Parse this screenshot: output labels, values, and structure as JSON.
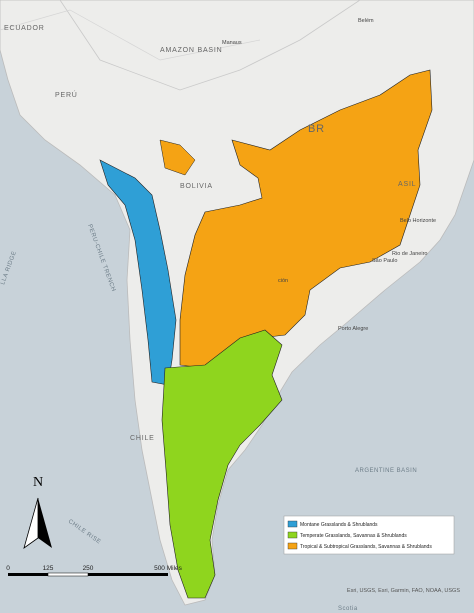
{
  "labels": {
    "ecuador": "ECUADOR",
    "peru": "PERÚ",
    "amazon_basin": "AMAZON BASIN",
    "manaus": "Manaus",
    "belem": "Belém",
    "brasil": "BR",
    "bolivia": "BOLIVIA",
    "brasil_right": "ASIL",
    "belo_horizonte": "Belo Horizonte",
    "rio": "Rio de Janeiro",
    "sao_paulo": "São Paulo",
    "asuncion": "ción",
    "porto_alegre": "Porto Alegre",
    "chile": "CHILE",
    "argentine_basin": "ARGENTINE BASIN",
    "trench": "PERU-CHILE TRENCH",
    "ridge": "LLA RIDGE",
    "chile_rise": "CHILE RISE",
    "scotia": "Scotia"
  },
  "legend": {
    "items": [
      {
        "label": "Montane Grasslands & Shrublands",
        "color": "#2f9fd6"
      },
      {
        "label": "Temperate Grasslands, Savannas & Shrublands",
        "color": "#8fd51e"
      },
      {
        "label": "Tropical & Subtropical Grasslands, Savannas & Shrublands",
        "color": "#f5a314"
      }
    ]
  },
  "north_arrow": "N",
  "scale_bar": {
    "ticks": [
      "0",
      "125",
      "250",
      "500 Miles"
    ]
  },
  "attribution": "Esri, USGS, Esri, Garmin, FAO, NOAA, USGS"
}
